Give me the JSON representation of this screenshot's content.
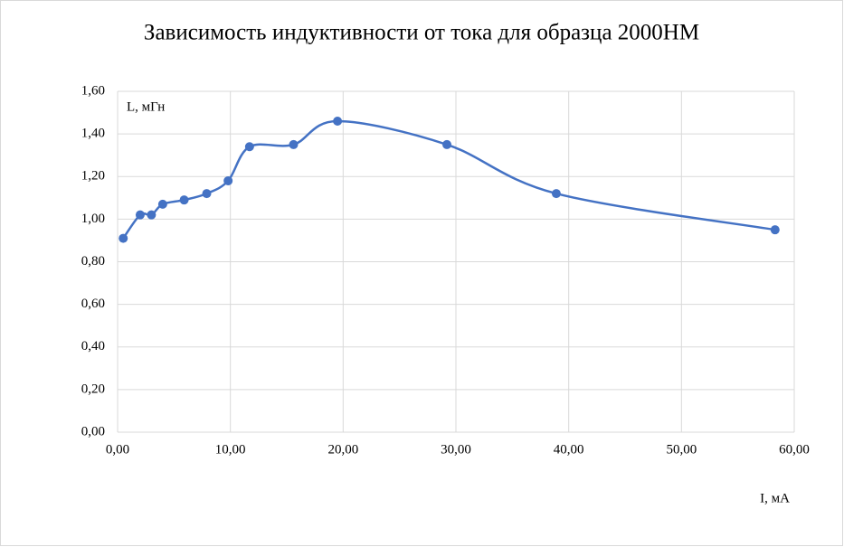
{
  "chart_data": {
    "type": "line",
    "title": "Зависимость индуктивности от тока для образца 2000НМ",
    "x_label": "I, мА",
    "y_label": "L, мГн",
    "series": [
      {
        "name": "L",
        "color": "#4472c4",
        "x": [
          0.5,
          2.0,
          3.0,
          4.0,
          5.9,
          7.9,
          9.8,
          11.7,
          15.6,
          19.5,
          29.2,
          38.9,
          58.3
        ],
        "values": [
          0.91,
          1.02,
          1.02,
          1.07,
          1.09,
          1.12,
          1.18,
          1.34,
          1.35,
          1.46,
          1.35,
          1.12,
          0.95
        ]
      }
    ],
    "smooth": true,
    "xlim": [
      0,
      60
    ],
    "xticks": [
      {
        "value": 0,
        "label": "0,00"
      },
      {
        "value": 10,
        "label": "10,00"
      },
      {
        "value": 20,
        "label": "20,00"
      },
      {
        "value": 30,
        "label": "30,00"
      },
      {
        "value": 40,
        "label": "40,00"
      },
      {
        "value": 50,
        "label": "50,00"
      },
      {
        "value": 60,
        "label": "60,00"
      }
    ],
    "ylim": [
      0,
      1.6
    ],
    "yticks": [
      {
        "value": 0,
        "label": "0,00"
      },
      {
        "value": 0.2,
        "label": "0,20"
      },
      {
        "value": 0.4,
        "label": "0,40"
      },
      {
        "value": 0.6,
        "label": "0,60"
      },
      {
        "value": 0.8,
        "label": "0,80"
      },
      {
        "value": 1.0,
        "label": "1,00"
      },
      {
        "value": 1.2,
        "label": "1,20"
      },
      {
        "value": 1.4,
        "label": "1,40"
      },
      {
        "value": 1.6,
        "label": "1,60"
      }
    ],
    "grid": true
  }
}
